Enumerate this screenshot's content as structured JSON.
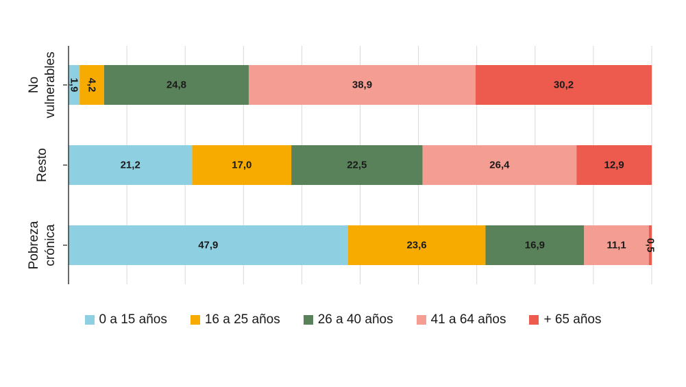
{
  "chart_data": {
    "type": "bar",
    "orientation": "horizontal",
    "stacked": true,
    "categories": [
      "No vulnerables",
      "Resto",
      "Pobreza crónica"
    ],
    "category_lines": [
      [
        "No",
        "vulnerables"
      ],
      [
        "Resto"
      ],
      [
        "Pobreza",
        "crónica"
      ]
    ],
    "series": [
      {
        "name": "0 a 15 años",
        "color": "#8ed0e2",
        "values": [
          1.9,
          21.2,
          47.9
        ],
        "labels": [
          "1,9",
          "21,2",
          "47,9"
        ]
      },
      {
        "name": "16 a 25 años",
        "color": "#f7ab00",
        "values": [
          4.2,
          17.0,
          23.6
        ],
        "labels": [
          "4,2",
          "17,0",
          "23,6"
        ]
      },
      {
        "name": "26 a 40 años",
        "color": "#5a825a",
        "values": [
          24.8,
          22.5,
          16.9
        ],
        "labels": [
          "24,8",
          "22,5",
          "16,9"
        ]
      },
      {
        "name": "41 a 64 años",
        "color": "#f49d92",
        "values": [
          38.9,
          26.4,
          11.1
        ],
        "labels": [
          "38,9",
          "26,4",
          "11,1"
        ]
      },
      {
        "name": "+ 65 años",
        "color": "#ec5b4d",
        "values": [
          30.2,
          12.9,
          0.5
        ],
        "labels": [
          "30,2",
          "12,9",
          "0,5"
        ]
      }
    ],
    "xlim": [
      0,
      100
    ],
    "grid": true,
    "legend_position": "bottom",
    "title": "",
    "xlabel": "",
    "ylabel": ""
  }
}
